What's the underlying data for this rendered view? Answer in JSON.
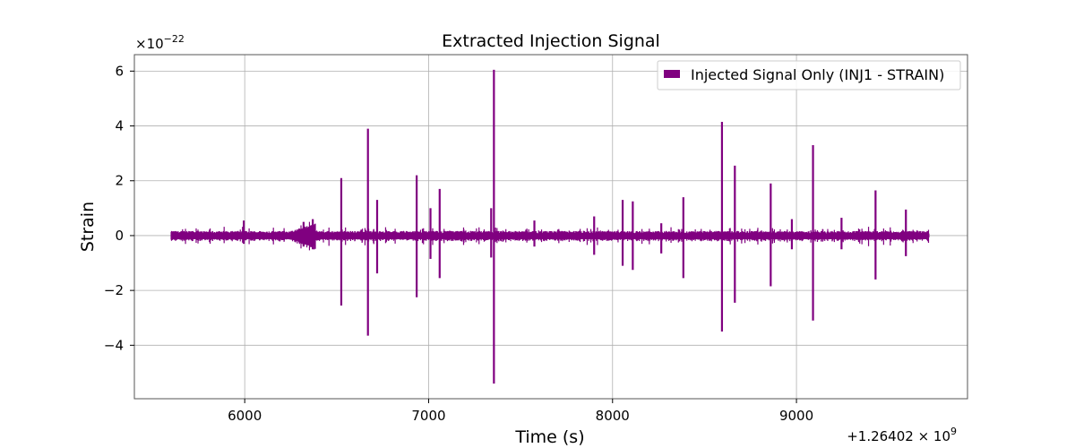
{
  "chart_data": {
    "type": "line",
    "title": "Extracted Injection Signal",
    "xlabel": "Time (s)",
    "ylabel": "Strain",
    "x_offset_label": "+1.26402 × 10",
    "x_offset_exp": "9",
    "y_scale_label": "×10",
    "y_scale_exp": "−22",
    "xlim": [
      5400,
      9930
    ],
    "ylim": [
      -5.95,
      6.6
    ],
    "x_ticks": [
      6000,
      7000,
      8000,
      9000
    ],
    "x_tick_labels": [
      "6000",
      "7000",
      "8000",
      "9000"
    ],
    "y_ticks": [
      -4,
      -2,
      0,
      2,
      4,
      6
    ],
    "y_tick_labels": [
      "−4",
      "−2",
      "0",
      "2",
      "4",
      "6"
    ],
    "grid": true,
    "legend_position": "top-right",
    "color": "#800080",
    "series": [
      {
        "name": "Injected Signal Only (INJ1 - STRAIN)",
        "x_range": [
          5600,
          9720
        ],
        "baseline_amplitude": 0.12,
        "spikes": [
          {
            "t": 5995,
            "max": 0.55,
            "min": -0.3
          },
          {
            "t": 6320,
            "max": 0.5,
            "min": -0.4
          },
          {
            "t": 6370,
            "max": 0.6,
            "min": -0.5
          },
          {
            "t": 6525,
            "max": 2.1,
            "min": -2.55
          },
          {
            "t": 6670,
            "max": 3.9,
            "min": -3.65
          },
          {
            "t": 6720,
            "max": 1.3,
            "min": -1.38
          },
          {
            "t": 6935,
            "max": 2.2,
            "min": -2.25
          },
          {
            "t": 7010,
            "max": 1.0,
            "min": -0.85
          },
          {
            "t": 7060,
            "max": 1.7,
            "min": -1.55
          },
          {
            "t": 7340,
            "max": 1.0,
            "min": -0.8
          },
          {
            "t": 7355,
            "max": 6.05,
            "min": -5.4
          },
          {
            "t": 7575,
            "max": 0.55,
            "min": -0.4
          },
          {
            "t": 7900,
            "max": 0.7,
            "min": -0.7
          },
          {
            "t": 8055,
            "max": 1.3,
            "min": -1.1
          },
          {
            "t": 8110,
            "max": 1.25,
            "min": -1.25
          },
          {
            "t": 8265,
            "max": 0.45,
            "min": -0.65
          },
          {
            "t": 8385,
            "max": 1.4,
            "min": -1.55
          },
          {
            "t": 8595,
            "max": 4.15,
            "min": -3.5
          },
          {
            "t": 8665,
            "max": 2.55,
            "min": -2.45
          },
          {
            "t": 8860,
            "max": 1.9,
            "min": -1.85
          },
          {
            "t": 8975,
            "max": 0.6,
            "min": -0.5
          },
          {
            "t": 9090,
            "max": 3.3,
            "min": -3.1
          },
          {
            "t": 9245,
            "max": 0.65,
            "min": -0.5
          },
          {
            "t": 9430,
            "max": 1.65,
            "min": -1.6
          },
          {
            "t": 9595,
            "max": 0.95,
            "min": -0.75
          }
        ]
      }
    ]
  }
}
